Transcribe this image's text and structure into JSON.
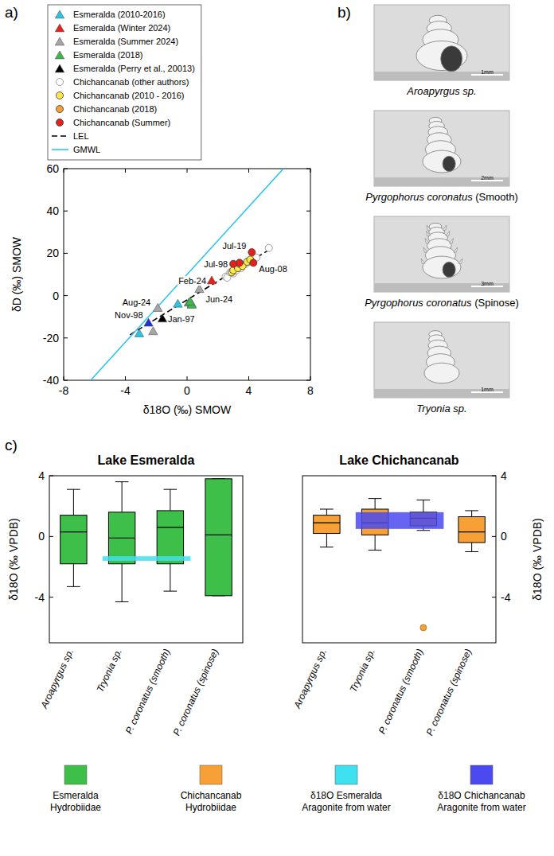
{
  "chart_data": [
    {
      "type": "scatter",
      "panel": "a)",
      "x_label": "δ18O (‰) SMOW",
      "y_label": "δD (‰) SMOW",
      "xlim": [
        -8,
        8
      ],
      "ylim": [
        -40,
        60
      ],
      "xticks": [
        -8,
        -4,
        0,
        4,
        8
      ],
      "yticks": [
        -40,
        -20,
        0,
        20,
        40,
        60
      ],
      "grid": false,
      "legend": "top-left",
      "series": [
        {
          "name": "Esmeralda (2010-2016)",
          "color": "#29c5e6",
          "marker": "triangle",
          "x": [
            -0.6,
            0.3,
            -3.1
          ],
          "y": [
            -4,
            -4,
            -18
          ]
        },
        {
          "name": "Esmeralda (Winter 2024)",
          "color": "#e8201c",
          "marker": "triangle",
          "x": [
            1.6
          ],
          "y": [
            7
          ]
        },
        {
          "name": "Esmeralda (Summer 2024)",
          "color": "#a6a6a6",
          "marker": "triangle",
          "x": [
            0.8,
            -1.9,
            -2.2
          ],
          "y": [
            3,
            -6,
            -17
          ]
        },
        {
          "name": "Esmeralda (2018)",
          "color": "#3cb84a",
          "marker": "triangle",
          "x": [
            0.1,
            0.3,
            0.2
          ],
          "y": [
            -3.5,
            -4.5,
            -3
          ]
        },
        {
          "name": "Esmeralda (Perry et al., 20013)",
          "color": "#000000",
          "colors": [
            "#000000",
            "#1f2fd0"
          ],
          "marker": "triangle",
          "x": [
            -1.6,
            -2.5
          ],
          "y": [
            -11,
            -13
          ]
        },
        {
          "name": "Chichancanab (other authors)",
          "color": "#ffffff",
          "marker": "circle",
          "x": [
            2.5,
            2.6,
            2.8,
            3.0,
            3.2,
            3.5,
            3.8,
            4.0,
            4.5,
            5.3
          ],
          "y": [
            9,
            8.5,
            11,
            10.5,
            12,
            13,
            15,
            16,
            18,
            22.5
          ]
        },
        {
          "name": "Chichancanab (2010 - 2016)",
          "color": "#ffe94a",
          "marker": "circle",
          "x": [
            2.9,
            3.0,
            3.3,
            3.4,
            3.6,
            3.9,
            4.1
          ],
          "y": [
            11,
            12,
            13,
            15,
            14,
            16,
            17
          ]
        },
        {
          "name": "Chichancanab (2018)",
          "color": "#f7a035",
          "marker": "circle",
          "x": [],
          "y": []
        },
        {
          "name": "Chichancanab (Summer)",
          "color": "#e8201c",
          "marker": "circle",
          "x": [
            4.2,
            3.0,
            4.3,
            3.4
          ],
          "y": [
            20.5,
            15,
            15.5,
            15.5
          ]
        },
        {
          "name": "LEL",
          "type": "line",
          "color": "#000000",
          "line_style": "dashed",
          "x": [
            -3.7,
            5.4
          ],
          "y": [
            -18.5,
            22
          ]
        },
        {
          "name": "GMWL",
          "type": "line",
          "color": "#2cc6ee",
          "line_style": "solid",
          "x": [
            -6.25,
            6.25
          ],
          "y": [
            -40,
            60
          ]
        }
      ],
      "annotations": [
        {
          "text": "Jul-19",
          "x": 4.2,
          "y": 20.5
        },
        {
          "text": "Jul-98",
          "x": 3.0,
          "y": 15
        },
        {
          "text": "Aug-08",
          "x": 4.3,
          "y": 15.5
        },
        {
          "text": "Feb-24",
          "x": 1.6,
          "y": 7
        },
        {
          "text": "Jun-24",
          "x": 0.8,
          "y": 3
        },
        {
          "text": "Aug-24",
          "x": -1.9,
          "y": -6
        },
        {
          "text": "Nov-98",
          "x": -2.5,
          "y": -13
        },
        {
          "text": "Jan-97",
          "x": -1.6,
          "y": -11
        }
      ]
    },
    {
      "type": "box",
      "panel": "c)",
      "title": "Lake Esmeralda",
      "y_label": "δ18O (‰ VPDB)",
      "ylim": [
        -7,
        4
      ],
      "yticks": [
        -4,
        0,
        4
      ],
      "grid": false,
      "legend": "bottom",
      "categories": [
        "Aroapyrgus sp.",
        "Tryonia sp.",
        "P. coronatus (smooth)",
        "P. coronatus (spinose)"
      ],
      "series": [
        {
          "name": "Esmeralda Hydrobiidae",
          "color": "#3dbf4a",
          "values": [
            {
              "whislo": -3.3,
              "q1": -1.8,
              "med": 0.3,
              "q3": 1.4,
              "whishi": 3.1,
              "outliers": []
            },
            {
              "whislo": -4.3,
              "q1": -1.8,
              "med": -0.1,
              "q3": 1.6,
              "whishi": 3.6,
              "outliers": []
            },
            {
              "whislo": -3.6,
              "q1": -1.8,
              "med": 0.6,
              "q3": 1.7,
              "whishi": 3.1,
              "outliers": []
            },
            {
              "whislo": -3.9,
              "q1": -3.9,
              "med": 0.1,
              "q3": 3.8,
              "whishi": 3.8,
              "outliers": []
            }
          ]
        }
      ],
      "bands": [
        {
          "name": "δ18O Esmeralda Aragonite from water",
          "color": "#3fe0f0",
          "ymin": -1.6,
          "ymax": -1.3,
          "span": [
            1,
            2
          ]
        }
      ]
    },
    {
      "type": "box",
      "title": "Lake Chichancanab",
      "y_label": "δ18O (‰ VPDB)",
      "ylim": [
        -7,
        4
      ],
      "yticks": [
        -4,
        0,
        4
      ],
      "grid": false,
      "legend": "bottom",
      "categories": [
        "Aroapyrgus sp.",
        "Tryonia sp.",
        "P. coronatus (smooth)",
        "P. coronatus (spinose)"
      ],
      "series": [
        {
          "name": "Chichancanab Hydrobiidae",
          "color": "#f7a035",
          "values": [
            {
              "whislo": -0.7,
              "q1": 0.2,
              "med": 0.9,
              "q3": 1.4,
              "whishi": 1.8,
              "outliers": []
            },
            {
              "whislo": -0.9,
              "q1": 0.1,
              "med": 0.9,
              "q3": 1.8,
              "whishi": 2.5,
              "outliers": []
            },
            {
              "whislo": 0.4,
              "q1": 0.7,
              "med": 1.2,
              "q3": 1.6,
              "whishi": 2.4,
              "outliers": [
                -6.0
              ]
            },
            {
              "whislo": -1.0,
              "q1": -0.4,
              "med": 0.3,
              "q3": 1.3,
              "whishi": 1.7,
              "outliers": []
            }
          ]
        }
      ],
      "bands": [
        {
          "name": "δ18O Chichancanab Aragonite from water",
          "color": "#4a4af0",
          "ymin": 0.5,
          "ymax": 1.6,
          "span": [
            1,
            2
          ]
        }
      ]
    }
  ],
  "photos": {
    "panel": "b)",
    "items": [
      {
        "species": "Aroapyrgus sp.",
        "form": "",
        "scale_bar": "1mm"
      },
      {
        "species": "Pyrgophorus coronatus",
        "form": "(Smooth)",
        "scale_bar": "2mm"
      },
      {
        "species": "Pyrgophorus coronatus",
        "form": "(Spinose)",
        "scale_bar": "3mm"
      },
      {
        "species": "Tryonia sp.",
        "form": "",
        "scale_bar": "1mm"
      }
    ]
  }
}
